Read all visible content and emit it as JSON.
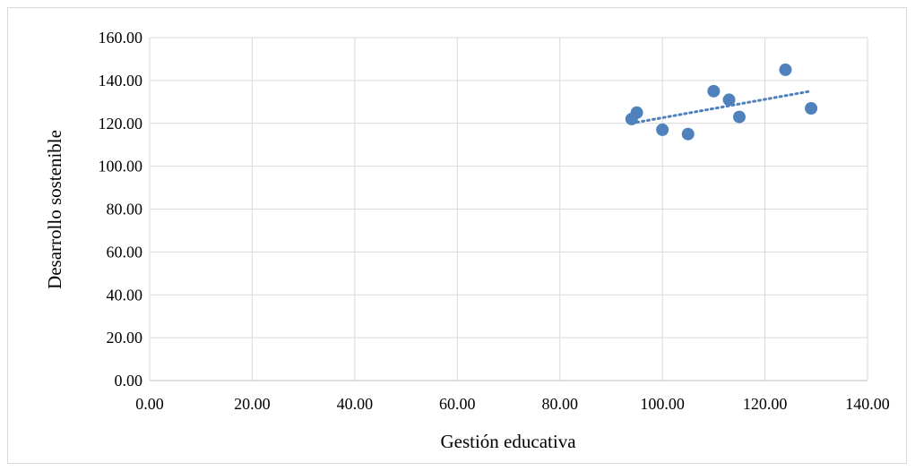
{
  "chart_data": {
    "type": "scatter",
    "title": "",
    "xlabel": "Gestión educativa",
    "ylabel": "Desarrollo sostenible",
    "xlim": [
      0,
      140
    ],
    "ylim": [
      0,
      160
    ],
    "x_ticks": [
      "0.00",
      "20.00",
      "40.00",
      "60.00",
      "80.00",
      "100.00",
      "120.00",
      "140.00"
    ],
    "y_ticks": [
      "0.00",
      "20.00",
      "40.00",
      "60.00",
      "80.00",
      "100.00",
      "120.00",
      "140.00",
      "160.00"
    ],
    "grid": true,
    "legend": "none",
    "series": [
      {
        "points": [
          {
            "x": 94,
            "y": 122
          },
          {
            "x": 95,
            "y": 125
          },
          {
            "x": 100,
            "y": 117
          },
          {
            "x": 105,
            "y": 115
          },
          {
            "x": 110,
            "y": 135
          },
          {
            "x": 113,
            "y": 131
          },
          {
            "x": 115,
            "y": 123
          },
          {
            "x": 124,
            "y": 145
          },
          {
            "x": 129,
            "y": 127
          }
        ],
        "color": "#4f81bd",
        "trendline": {
          "type": "linear",
          "style": "dotted",
          "x_range": [
            94,
            129
          ]
        }
      }
    ]
  }
}
